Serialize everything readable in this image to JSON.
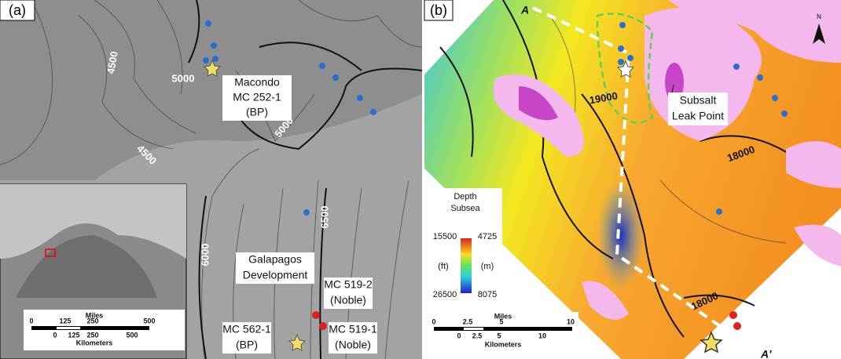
{
  "panel_a": {
    "label": "(a)",
    "contour_labels": [
      "4500",
      "5000",
      "4500",
      "5000",
      "6000",
      "6500"
    ],
    "callouts": [
      [
        "Macondo",
        "MC 252-1",
        "(BP)"
      ],
      [
        "Galapagos",
        "Development"
      ],
      [
        "MC 519-2",
        "(Noble)"
      ],
      [
        "MC 562-1",
        "(BP)"
      ],
      [
        "MC 519-1",
        "(Noble)"
      ]
    ],
    "scale_bar": {
      "top_title": "Miles",
      "top_ticks": [
        "0",
        "125",
        "250",
        "500"
      ],
      "bottom_ticks": [
        "0",
        "125",
        "250",
        "500"
      ],
      "bottom_title": "Kilometers"
    }
  },
  "panel_b": {
    "label": "(b)",
    "section_ends": [
      "A",
      "A'"
    ],
    "north": "N",
    "contour_labels": [
      "19000",
      "18000",
      "18000"
    ],
    "callout": [
      "Subsalt",
      "Leak Point"
    ],
    "legend": {
      "title": [
        "Depth",
        "Subsea"
      ],
      "ft": [
        "15500",
        "26500"
      ],
      "m": [
        "4725",
        "8075"
      ],
      "units": [
        "(ft)",
        "(m)"
      ]
    },
    "scale_bar": {
      "top_title": "Miles",
      "top_ticks": [
        "0",
        "2.5",
        "5",
        "10"
      ],
      "bottom_ticks": [
        "0",
        "2.5",
        "5",
        "10"
      ],
      "bottom_title": "Kilometers"
    }
  }
}
